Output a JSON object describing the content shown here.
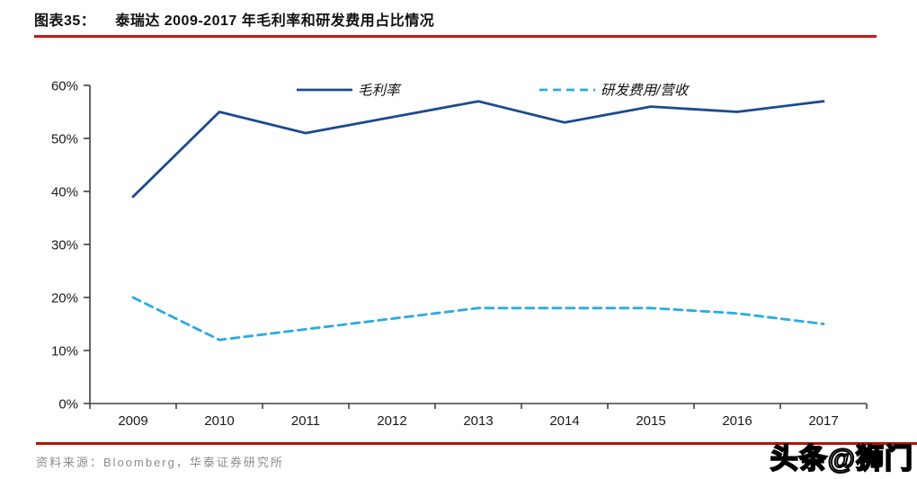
{
  "header": {
    "label": "图表35：",
    "title": "泰瑞达 2009-2017 年毛利率和研发费用占比情况"
  },
  "chart_data": {
    "type": "line",
    "title": "泰瑞达 2009-2017 年毛利率和研发费用占比情况",
    "categories": [
      "2009",
      "2010",
      "2011",
      "2012",
      "2013",
      "2014",
      "2015",
      "2016",
      "2017"
    ],
    "series": [
      {
        "name": "毛利率",
        "style": "solid",
        "color": "#1B4A8F",
        "values": [
          39,
          55,
          51,
          54,
          57,
          53,
          56,
          55,
          57
        ]
      },
      {
        "name": "研发费用/营收",
        "style": "dashed",
        "color": "#2BAAE2",
        "values": [
          20,
          12,
          14,
          16,
          18,
          18,
          18,
          17,
          15
        ]
      }
    ],
    "xlabel": "",
    "ylabel": "",
    "ylim": [
      0,
      60
    ],
    "y_tick_labels": [
      "0%",
      "10%",
      "20%",
      "30%",
      "40%",
      "50%",
      "60%"
    ],
    "grid": false,
    "legend_position": "top-inside"
  },
  "footer": {
    "source": "资料来源：Bloomberg，华泰证券研究所",
    "watermark": "头条@狮门"
  },
  "colors": {
    "series_solid": "#1B4A8F",
    "series_dashed": "#2BAAE2",
    "accent_red_header": "#C41A10",
    "accent_red_footer": "#B01408",
    "axis": "#404040",
    "tick_text": "#1A1A1A",
    "source_text": "#8C8C8C"
  }
}
